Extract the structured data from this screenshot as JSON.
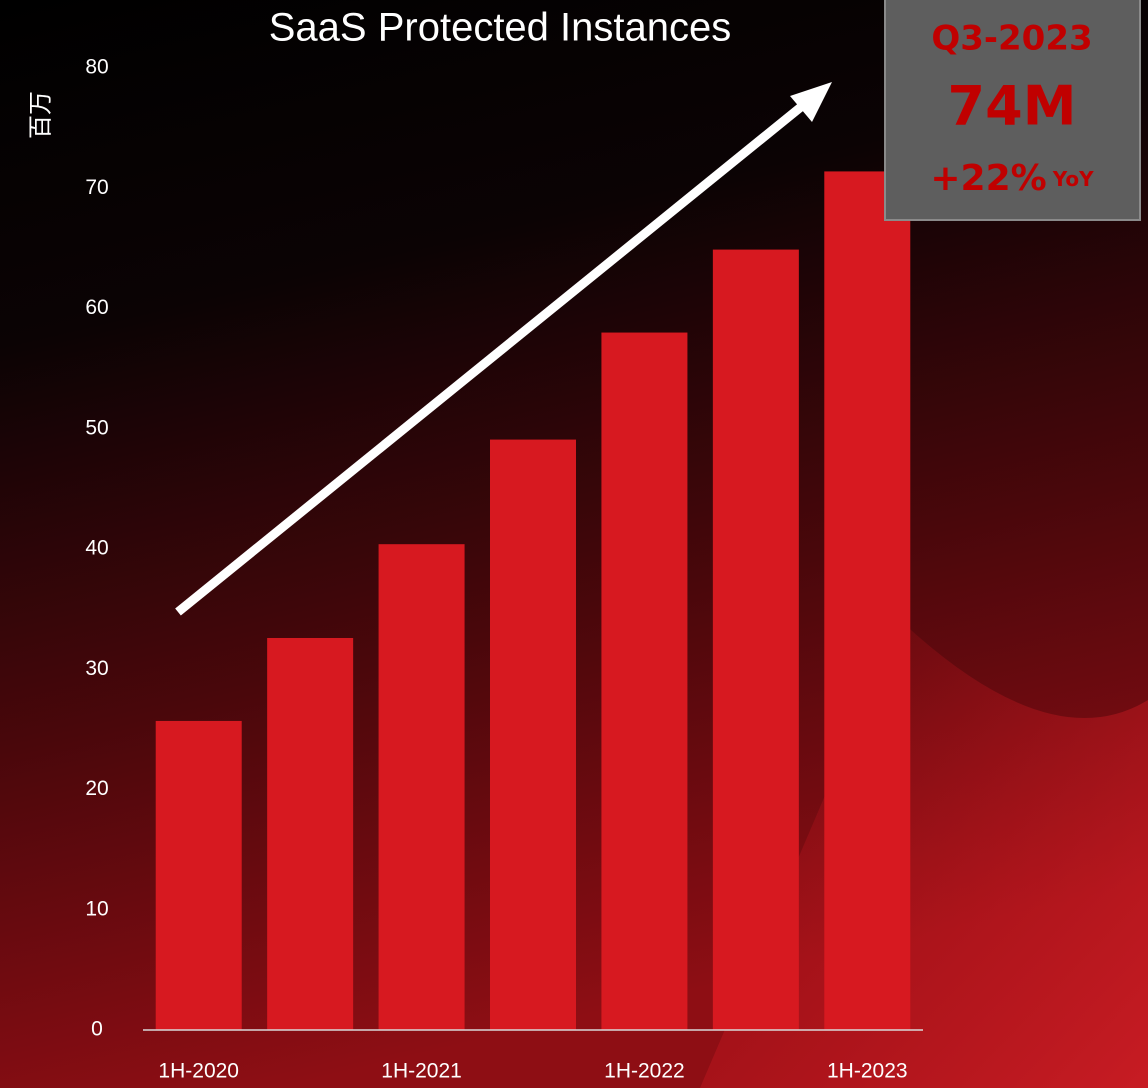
{
  "chart_data": {
    "type": "bar",
    "title": "SaaS Protected Instances",
    "y_label": "百万",
    "categories": [
      "1H-2020",
      null,
      "1H-2021",
      null,
      "1H-2022",
      null,
      "1H-2023"
    ],
    "values": [
      25.7,
      32.6,
      40.4,
      49.1,
      58.0,
      64.9,
      71.4
    ],
    "color": "#d71920",
    "ylim": [
      0,
      80
    ],
    "yticks": [
      0,
      10,
      20,
      30,
      40,
      50,
      60,
      70,
      80
    ],
    "annotation": {
      "period": "Q3-2023",
      "value": "74M",
      "growth": "+22%",
      "growth_unit": "YoY"
    }
  }
}
